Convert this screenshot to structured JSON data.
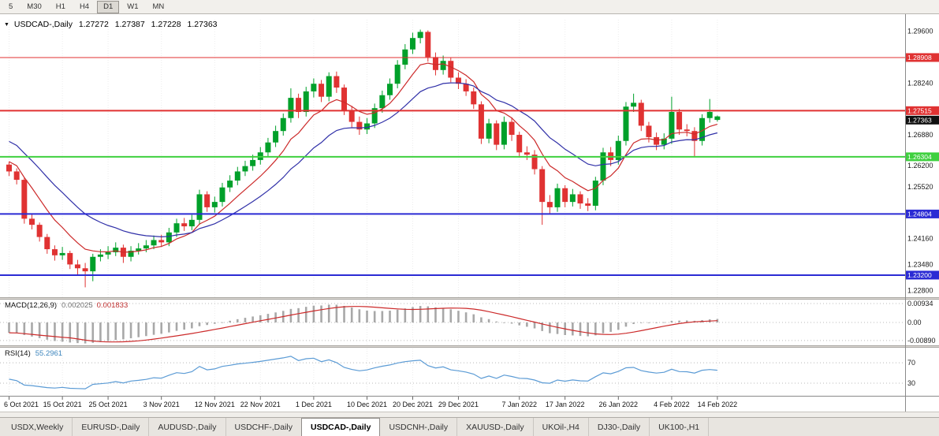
{
  "toolbar": {
    "timeframes": [
      {
        "label": "5"
      },
      {
        "label": "M30"
      },
      {
        "label": "H1"
      },
      {
        "label": "H4"
      },
      {
        "label": "D1"
      },
      {
        "label": "W1"
      },
      {
        "label": "MN"
      }
    ],
    "active": "D1"
  },
  "icons": {
    "chart_dropdown": "▼"
  },
  "chart": {
    "title": {
      "symbol": "USDCAD-,Daily",
      "open": "1.27272",
      "high": "1.27387",
      "low": "1.27228",
      "close": "1.27363"
    }
  },
  "chart_data": {
    "type": "candlestick",
    "symbol": "USDCAD-",
    "timeframe": "Daily",
    "colors": {
      "bull": "#00a02a",
      "bear": "#e03232",
      "background": "#ffffff"
    },
    "price_axis": {
      "min": 1.2262,
      "max": 1.299,
      "labels": [
        "1.29600",
        "1.28240",
        "1.26880",
        "1.26200",
        "1.25520",
        "1.24160",
        "1.23480",
        "1.22800"
      ]
    },
    "current_price": {
      "value": 1.27363,
      "label": "1.27363",
      "badge_color": "#101010"
    },
    "horizontal_lines": [
      {
        "label": "1.28908",
        "price": 1.28908,
        "color": "#e03232",
        "width": 1
      },
      {
        "label": "1.27515",
        "price": 1.27515,
        "color": "#e03232",
        "width": 2
      },
      {
        "label": "1.26304",
        "price": 1.26304,
        "color": "#3fd03f",
        "width": 2
      },
      {
        "label": "1.24804",
        "price": 1.24804,
        "color": "#2b2bd4",
        "width": 2
      },
      {
        "label": "1.23200",
        "price": 1.232,
        "color": "#2b2bd4",
        "width": 2
      }
    ],
    "overlays": [
      {
        "name": "ma-fast",
        "color": "#cc2a2a",
        "period": 8,
        "seed": 1.2625
      },
      {
        "name": "ma-slow",
        "color": "#3030a8",
        "period": 18,
        "seed": 1.268
      }
    ],
    "indicators": [
      {
        "name": "MACD",
        "label": "MACD(12,26,9)",
        "values_text": [
          "0.002025",
          "0.001833"
        ],
        "params": [
          12,
          26,
          9
        ],
        "seed_fast": 1.265,
        "seed_slow": 1.27,
        "axis_labels": [
          "0.00934",
          "0.00",
          "-0.00890"
        ],
        "histogram_color": "#a8a8a8",
        "signal_color": "#cc2a2a"
      },
      {
        "name": "RSI",
        "label": "RSI(14)",
        "value_text": "55.2961",
        "period": 14,
        "levels": [
          70,
          30
        ],
        "axis_labels": [
          "70",
          "30"
        ],
        "line_color": "#5b9bd5"
      }
    ],
    "x_tick_labels": [
      "6 Oct 2021",
      "15 Oct 2021",
      "25 Oct 2021",
      "3 Nov 2021",
      "12 Nov 2021",
      "22 Nov 2021",
      "1 Dec 2021",
      "10 Dec 2021",
      "20 Dec 2021",
      "29 Dec 2021",
      "7 Jan 2022",
      "17 Jan 2022",
      "26 Jan 2022",
      "4 Feb 2022",
      "14 Feb 2022"
    ],
    "x_tick_indices": [
      0,
      7,
      13,
      20,
      27,
      33,
      40,
      47,
      53,
      59,
      67,
      73,
      80,
      87,
      93
    ],
    "candles": [
      [
        1.261,
        1.2618,
        1.258,
        1.2592
      ],
      [
        1.2592,
        1.26,
        1.2558,
        1.257
      ],
      [
        1.257,
        1.2576,
        1.2455,
        1.2468
      ],
      [
        1.2468,
        1.2482,
        1.244,
        1.2452
      ],
      [
        1.2452,
        1.2458,
        1.2408,
        1.242
      ],
      [
        1.242,
        1.2428,
        1.2376,
        1.2388
      ],
      [
        1.2388,
        1.2398,
        1.2358,
        1.2372
      ],
      [
        1.2372,
        1.2394,
        1.236,
        1.2378
      ],
      [
        1.2378,
        1.2384,
        1.2336,
        1.2348
      ],
      [
        1.2348,
        1.236,
        1.232,
        1.2338
      ],
      [
        1.2338,
        1.2352,
        1.2288,
        1.233
      ],
      [
        1.233,
        1.2376,
        1.2304,
        1.2368
      ],
      [
        1.2368,
        1.2388,
        1.2356,
        1.2374
      ],
      [
        1.2374,
        1.2396,
        1.2362,
        1.238
      ],
      [
        1.238,
        1.2406,
        1.237,
        1.2392
      ],
      [
        1.2392,
        1.24,
        1.2352,
        1.2368
      ],
      [
        1.2368,
        1.2396,
        1.2356,
        1.2384
      ],
      [
        1.2384,
        1.2404,
        1.2374,
        1.239
      ],
      [
        1.239,
        1.2412,
        1.238,
        1.2398
      ],
      [
        1.2398,
        1.2424,
        1.2388,
        1.2412
      ],
      [
        1.2412,
        1.2426,
        1.2394,
        1.2406
      ],
      [
        1.2406,
        1.2444,
        1.2396,
        1.2432
      ],
      [
        1.2432,
        1.2468,
        1.242,
        1.2456
      ],
      [
        1.2456,
        1.247,
        1.2436,
        1.2448
      ],
      [
        1.2448,
        1.2478,
        1.2438,
        1.2465
      ],
      [
        1.2465,
        1.2544,
        1.2452,
        1.2532
      ],
      [
        1.2532,
        1.254,
        1.2486,
        1.2498
      ],
      [
        1.2498,
        1.2526,
        1.2484,
        1.2512
      ],
      [
        1.2512,
        1.2562,
        1.25,
        1.255
      ],
      [
        1.255,
        1.2582,
        1.2538,
        1.2568
      ],
      [
        1.2568,
        1.2604,
        1.2556,
        1.2592
      ],
      [
        1.2592,
        1.262,
        1.258,
        1.2606
      ],
      [
        1.2606,
        1.2636,
        1.2594,
        1.2622
      ],
      [
        1.2622,
        1.2656,
        1.261,
        1.2642
      ],
      [
        1.2642,
        1.268,
        1.263,
        1.2668
      ],
      [
        1.2668,
        1.2712,
        1.2656,
        1.2698
      ],
      [
        1.2698,
        1.2744,
        1.2686,
        1.2732
      ],
      [
        1.2732,
        1.281,
        1.272,
        1.2785
      ],
      [
        1.2785,
        1.2796,
        1.2732,
        1.2748
      ],
      [
        1.2748,
        1.2814,
        1.2736,
        1.2802
      ],
      [
        1.2802,
        1.2836,
        1.2786,
        1.2822
      ],
      [
        1.2822,
        1.2832,
        1.2774,
        1.2788
      ],
      [
        1.2788,
        1.2852,
        1.2776,
        1.2842
      ],
      [
        1.2842,
        1.2854,
        1.2798,
        1.2812
      ],
      [
        1.2812,
        1.282,
        1.274,
        1.2752
      ],
      [
        1.2752,
        1.2764,
        1.2708,
        1.2722
      ],
      [
        1.2722,
        1.2736,
        1.2688,
        1.2702
      ],
      [
        1.2702,
        1.2732,
        1.269,
        1.2718
      ],
      [
        1.2718,
        1.277,
        1.2706,
        1.2758
      ],
      [
        1.2758,
        1.2804,
        1.2746,
        1.2792
      ],
      [
        1.2792,
        1.2836,
        1.278,
        1.2822
      ],
      [
        1.2822,
        1.2884,
        1.281,
        1.2872
      ],
      [
        1.2872,
        1.2926,
        1.286,
        1.2912
      ],
      [
        1.2912,
        1.2956,
        1.29,
        1.2942
      ],
      [
        1.2942,
        1.2964,
        1.2928,
        1.2958
      ],
      [
        1.2958,
        1.2962,
        1.288,
        1.2892
      ],
      [
        1.2892,
        1.2904,
        1.2844,
        1.2858
      ],
      [
        1.2858,
        1.2896,
        1.2846,
        1.2882
      ],
      [
        1.2882,
        1.289,
        1.2826,
        1.2838
      ],
      [
        1.2838,
        1.2852,
        1.2808,
        1.2822
      ],
      [
        1.2822,
        1.2834,
        1.279,
        1.2802
      ],
      [
        1.2802,
        1.2812,
        1.2756,
        1.2768
      ],
      [
        1.2768,
        1.2776,
        1.2664,
        1.2678
      ],
      [
        1.2678,
        1.273,
        1.2666,
        1.2718
      ],
      [
        1.2718,
        1.2726,
        1.2648,
        1.2662
      ],
      [
        1.2662,
        1.2736,
        1.265,
        1.2722
      ],
      [
        1.2722,
        1.2734,
        1.2672,
        1.2688
      ],
      [
        1.2688,
        1.2696,
        1.2628,
        1.2642
      ],
      [
        1.2642,
        1.2658,
        1.2622,
        1.2636
      ],
      [
        1.2636,
        1.2648,
        1.2584,
        1.2598
      ],
      [
        1.2598,
        1.2606,
        1.2452,
        1.2512
      ],
      [
        1.2512,
        1.253,
        1.248,
        1.2498
      ],
      [
        1.2498,
        1.256,
        1.2486,
        1.2548
      ],
      [
        1.2548,
        1.2556,
        1.2498,
        1.2512
      ],
      [
        1.2512,
        1.2546,
        1.25,
        1.2532
      ],
      [
        1.2532,
        1.254,
        1.2494,
        1.2508
      ],
      [
        1.2508,
        1.2522,
        1.2488,
        1.2502
      ],
      [
        1.2502,
        1.2578,
        1.249,
        1.2568
      ],
      [
        1.2568,
        1.2654,
        1.2556,
        1.2642
      ],
      [
        1.2642,
        1.2656,
        1.2606,
        1.2622
      ],
      [
        1.2622,
        1.2686,
        1.261,
        1.2672
      ],
      [
        1.2672,
        1.2774,
        1.266,
        1.2762
      ],
      [
        1.2762,
        1.2796,
        1.2748,
        1.2772
      ],
      [
        1.2772,
        1.278,
        1.2698,
        1.2712
      ],
      [
        1.2712,
        1.2722,
        1.2668,
        1.2682
      ],
      [
        1.2682,
        1.2694,
        1.2648,
        1.2662
      ],
      [
        1.2662,
        1.2692,
        1.265,
        1.2678
      ],
      [
        1.2678,
        1.2788,
        1.2664,
        1.2748
      ],
      [
        1.2748,
        1.2756,
        1.2688,
        1.2702
      ],
      [
        1.2702,
        1.2716,
        1.2684,
        1.2698
      ],
      [
        1.2698,
        1.2708,
        1.2632,
        1.2672
      ],
      [
        1.2672,
        1.2742,
        1.266,
        1.2732
      ],
      [
        1.2732,
        1.2782,
        1.272,
        1.2748
      ],
      [
        1.27272,
        1.27387,
        1.27228,
        1.27363
      ]
    ]
  },
  "tabs": {
    "items": [
      {
        "label": "USDX,Weekly"
      },
      {
        "label": "EURUSD-,Daily"
      },
      {
        "label": "AUDUSD-,Daily"
      },
      {
        "label": "USDCHF-,Daily"
      },
      {
        "label": "USDCAD-,Daily"
      },
      {
        "label": "USDCNH-,Daily"
      },
      {
        "label": "XAUUSD-,Daily"
      },
      {
        "label": "UKOil-,H4"
      },
      {
        "label": "DJ30-,Daily"
      },
      {
        "label": "UK100-,H1"
      }
    ],
    "active": "USDCAD-,Daily"
  }
}
